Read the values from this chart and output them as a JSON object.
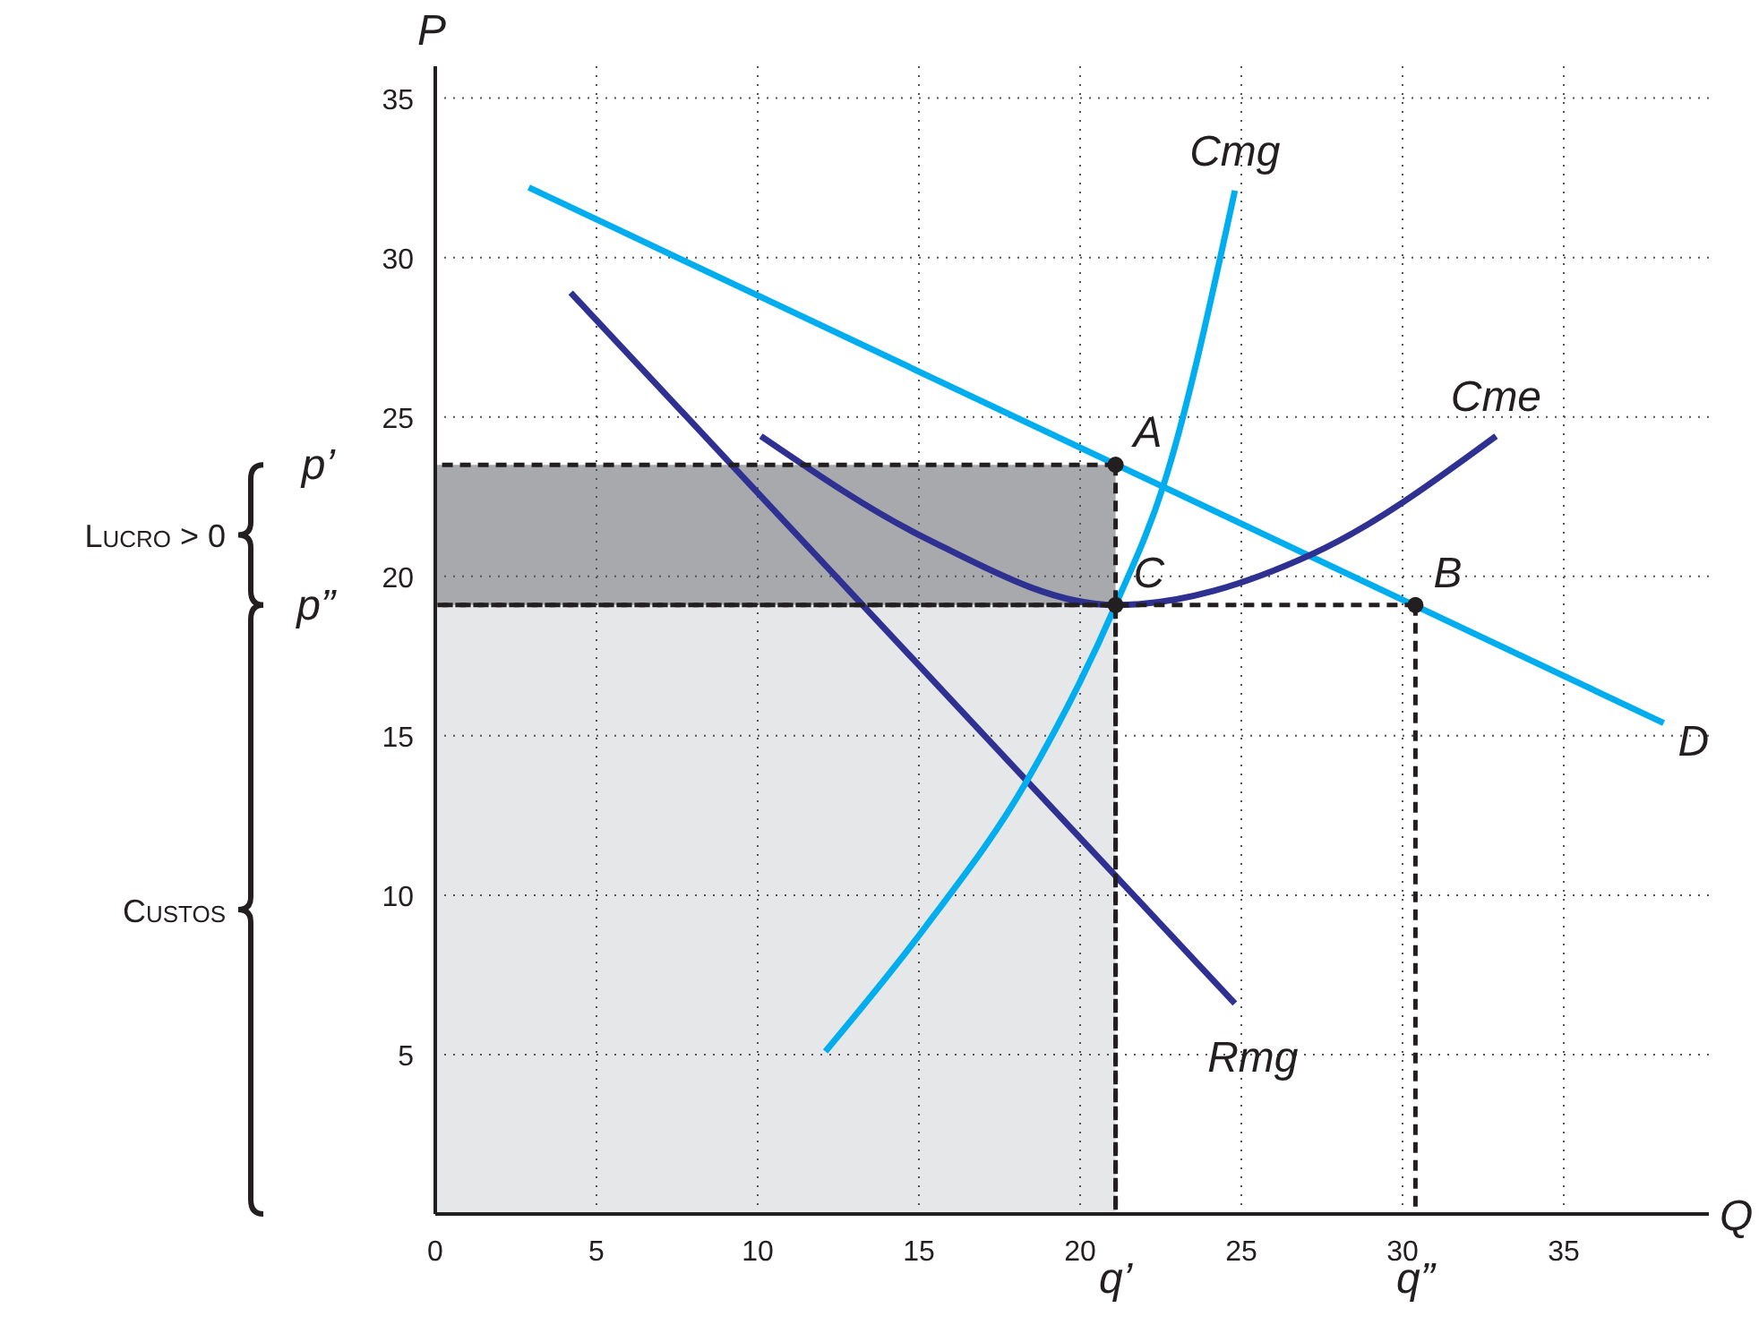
{
  "chart_data": {
    "type": "line",
    "xlabel": "Q",
    "ylabel": "P",
    "xlim": [
      0,
      39.5
    ],
    "ylim": [
      0,
      36
    ],
    "xticks": [
      0,
      5,
      10,
      15,
      20,
      25,
      30,
      35
    ],
    "yticks": [
      5,
      10,
      15,
      20,
      25,
      30,
      35
    ],
    "grid": true,
    "stacked": true,
    "series": [
      {
        "type": "area",
        "color": "#e6e7e8",
        "x": [
          0,
          21.1
        ],
        "values": [
          19.1,
          19.1
        ]
      },
      {
        "type": "area",
        "color": "#a7a9ac",
        "x": [
          0,
          21.1
        ],
        "values": [
          4.4,
          4.4
        ]
      },
      {
        "name": "D",
        "color": "#00aeef",
        "x": [
          2.9,
          38.1
        ],
        "values": [
          32.2,
          15.4
        ]
      },
      {
        "name": "Rmg",
        "color": "#2e3192",
        "x": [
          4.2,
          24.8
        ],
        "values": [
          28.9,
          6.6
        ]
      },
      {
        "name": "Cmg",
        "color": "#00aeef",
        "x": [
          12.1,
          15.2,
          18.3,
          21.1,
          22.6,
          24.8
        ],
        "values": [
          5.1,
          9.0,
          13.5,
          19.1,
          22.9,
          32.1
        ]
      },
      {
        "name": "Cme",
        "color": "#2e3192",
        "x": [
          10.1,
          15.2,
          21.1,
          27.2,
          32.9
        ],
        "values": [
          24.4,
          21.2,
          19.1,
          20.7,
          24.4
        ]
      },
      {
        "type": "scatter",
        "color": "#231f20",
        "marker": "circle",
        "x": [
          21.1,
          21.1,
          30.4
        ],
        "values": [
          23.5,
          19.1,
          19.1
        ]
      }
    ],
    "annotations": [
      "Custos",
      "Lucro > 0",
      {
        "text": "A",
        "x": 21.1,
        "y": 23.5
      },
      {
        "text": "C",
        "x": 21.1,
        "y": 19.1
      },
      {
        "text": "B",
        "x": 30.4,
        "y": 19.1
      },
      {
        "text": "p’",
        "x": 0,
        "y": 23.5
      },
      {
        "text": "p”",
        "x": 0,
        "y": 19.1
      },
      {
        "text": "q’",
        "x": 21.1,
        "y": 0
      },
      {
        "text": "q”",
        "x": 30.4,
        "y": 19.1
      }
    ]
  }
}
